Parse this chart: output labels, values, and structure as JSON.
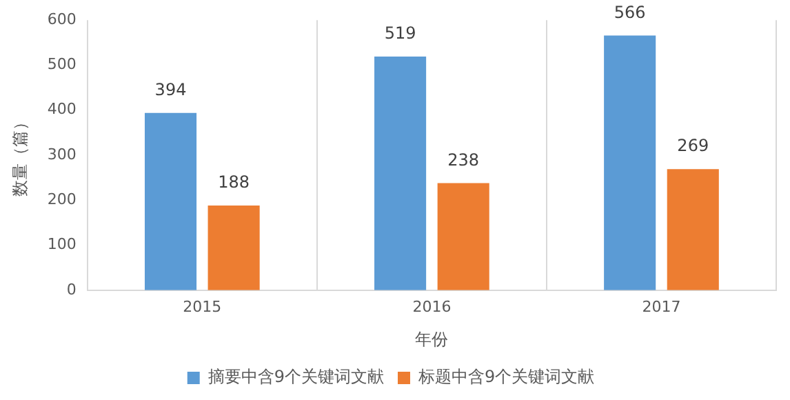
{
  "chart_data": {
    "type": "bar",
    "xlabel": "年份",
    "ylabel": "数量（篇）",
    "categories": [
      "2015",
      "2016",
      "2017"
    ],
    "series": [
      {
        "name": "摘要中含9个关键词文献",
        "color": "#5b9bd5",
        "values": [
          394,
          519,
          566
        ]
      },
      {
        "name": "标题中含9个关键词文献",
        "color": "#ed7d31",
        "values": [
          188,
          238,
          269
        ]
      }
    ],
    "ylim": [
      0,
      600
    ],
    "yticks": [
      0,
      100,
      200,
      300,
      400,
      500,
      600
    ],
    "grid": "x",
    "legend": "bottom",
    "data_labels": true
  }
}
